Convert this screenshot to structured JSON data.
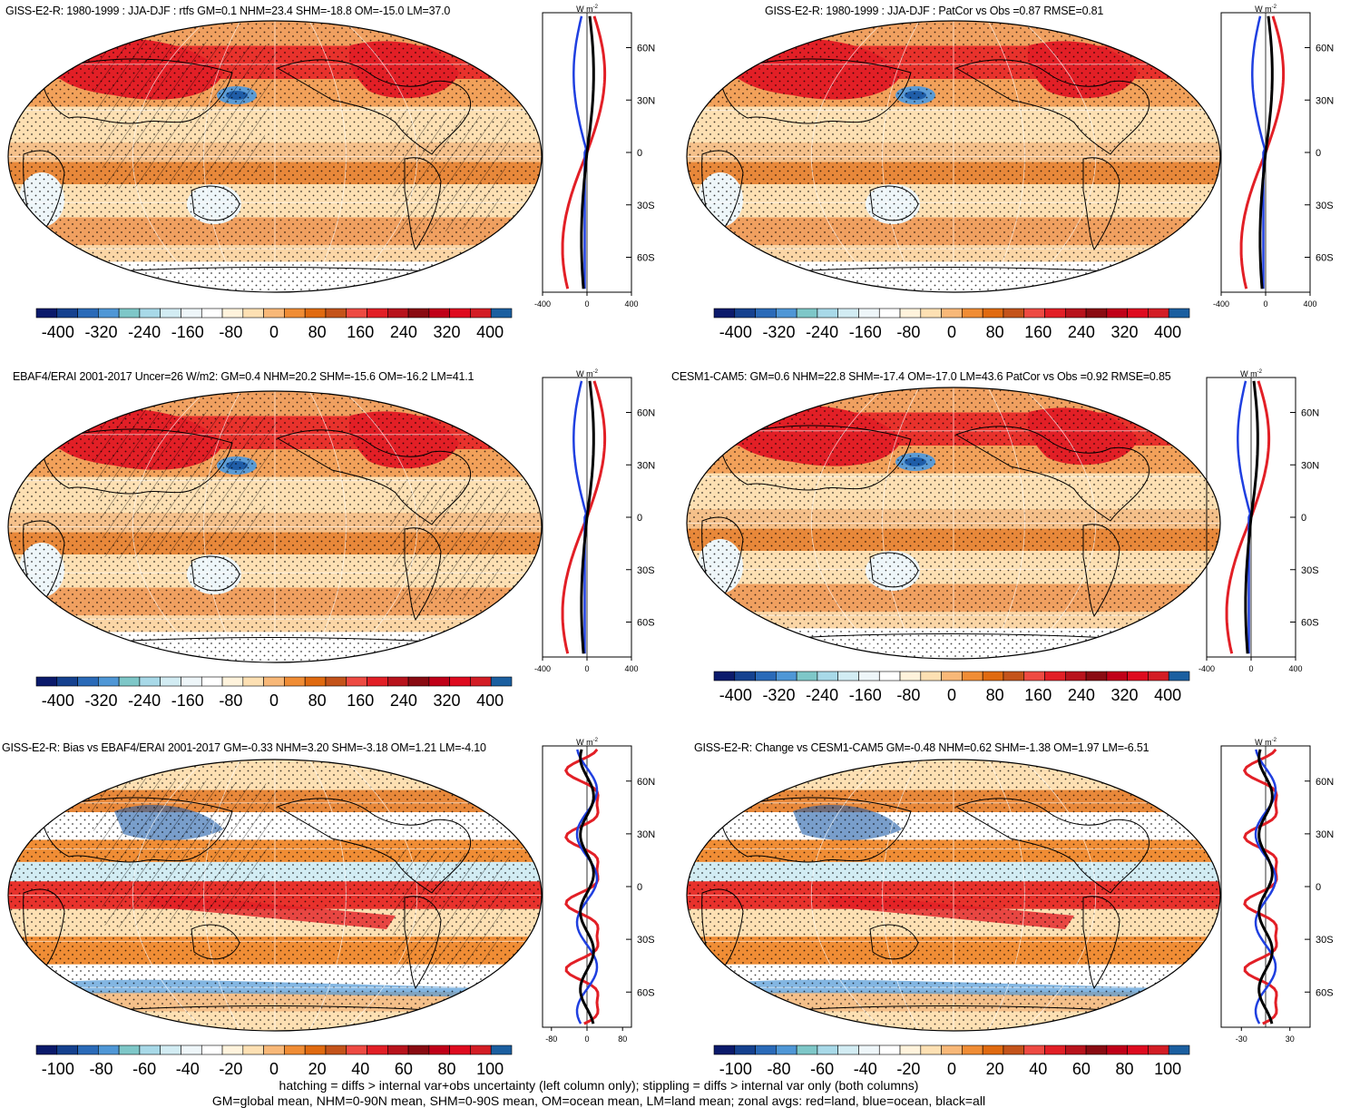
{
  "panels": [
    {
      "title": "GISS-E2-R: 1980-1999 : JJA-DJF : rtfs GM=0.1 NHM=23.4 SHM=-18.8 OM=-15.0 LM=37.0",
      "zonal_unit": "W m",
      "zonal_unit_exp": "-2",
      "zonal_xticks": [
        "-400",
        "0",
        "400"
      ],
      "zonal_xrange": [
        -400,
        400
      ],
      "lat_ticks": [
        "60N",
        "30N",
        "0",
        "30S",
        "60S"
      ],
      "colorbar_labels": [
        "-400",
        "-320",
        "-240",
        "-160",
        "-80",
        "0",
        "80",
        "160",
        "240",
        "320",
        "400"
      ],
      "hatching": true,
      "style": "mean"
    },
    {
      "title": "GISS-E2-R: 1980-1999 : JJA-DJF : PatCor vs Obs =0.87 RMSE=0.81",
      "zonal_unit": "W m",
      "zonal_unit_exp": "-2",
      "zonal_xticks": [
        "-400",
        "0",
        "400"
      ],
      "zonal_xrange": [
        -400,
        400
      ],
      "lat_ticks": [
        "60N",
        "30N",
        "0",
        "30S",
        "60S"
      ],
      "colorbar_labels": [
        "-400",
        "-320",
        "-240",
        "-160",
        "-80",
        "0",
        "80",
        "160",
        "240",
        "320",
        "400"
      ],
      "hatching": false,
      "style": "mean"
    },
    {
      "title": "EBAF4/ERAI 2001-2017 Uncer=26 W/m2: GM=0.4 NHM=20.2 SHM=-15.6 OM=-16.2 LM=41.1",
      "zonal_unit": "W m",
      "zonal_unit_exp": "-2",
      "zonal_xticks": [
        "-400",
        "0",
        "400"
      ],
      "zonal_xrange": [
        -400,
        400
      ],
      "lat_ticks": [
        "60N",
        "30N",
        "0",
        "30S",
        "60S"
      ],
      "colorbar_labels": [
        "-400",
        "-320",
        "-240",
        "-160",
        "-80",
        "0",
        "80",
        "160",
        "240",
        "320",
        "400"
      ],
      "hatching": true,
      "style": "mean"
    },
    {
      "title": "CESM1-CAM5: GM=0.6 NHM=22.8 SHM=-17.4 OM=-17.0 LM=43.6 PatCor vs Obs =0.92 RMSE=0.85",
      "zonal_unit": "W m",
      "zonal_unit_exp": "-2",
      "zonal_xticks": [
        "-400",
        "0",
        "400"
      ],
      "zonal_xrange": [
        -400,
        400
      ],
      "lat_ticks": [
        "60N",
        "30N",
        "0",
        "30S",
        "60S"
      ],
      "colorbar_labels": [
        "-400",
        "-320",
        "-240",
        "-160",
        "-80",
        "0",
        "80",
        "160",
        "240",
        "320",
        "400"
      ],
      "hatching": false,
      "style": "mean"
    },
    {
      "title": "GISS-E2-R: Bias vs EBAF4/ERAI 2001-2017 GM=-0.33 NHM=3.20 SHM=-3.18 OM=1.21 LM=-4.10",
      "zonal_unit": "W m",
      "zonal_unit_exp": "-2",
      "zonal_xticks": [
        "-80",
        "0",
        "80"
      ],
      "zonal_xrange": [
        -100,
        100
      ],
      "lat_ticks": [
        "60N",
        "30N",
        "0",
        "30S",
        "60S"
      ],
      "colorbar_labels": [
        "-100",
        "-80",
        "-60",
        "-40",
        "-20",
        "0",
        "20",
        "40",
        "60",
        "80",
        "100"
      ],
      "hatching": true,
      "style": "diff"
    },
    {
      "title": "GISS-E2-R: Change vs CESM1-CAM5 GM=-0.48 NHM=0.62 SHM=-1.38 OM=1.97 LM=-6.51",
      "zonal_unit": "W m",
      "zonal_unit_exp": "-2",
      "zonal_xticks": [
        "-30",
        "30"
      ],
      "zonal_xrange": [
        -55,
        55
      ],
      "lat_ticks": [
        "60N",
        "30N",
        "0",
        "30S",
        "60S"
      ],
      "colorbar_labels": [
        "-100",
        "-80",
        "-60",
        "-40",
        "-20",
        "0",
        "20",
        "40",
        "60",
        "80",
        "100"
      ],
      "hatching": false,
      "style": "diff"
    }
  ],
  "colorbar_colors": [
    "#0b1a6b",
    "#15418f",
    "#2a6ab8",
    "#4f97d6",
    "#7ec7c8",
    "#a8d9e8",
    "#d2ecf3",
    "#eef6f9",
    "#ffffff",
    "#fff3dc",
    "#fde0b3",
    "#f8b878",
    "#f08d35",
    "#e06a10",
    "#c4531a",
    "#ee4a42",
    "#e21f26",
    "#b8131c",
    "#8a0b12",
    "#c00018",
    "#de0b1f",
    "#d31d25",
    "#1b5fa0"
  ],
  "footer": {
    "line1": "hatching = diffs > internal var+obs uncertainty (left column only); stippling = diffs > internal var only (both columns)",
    "line2": "GM=global mean, NHM=0-90N mean, SHM=0-90S mean, OM=ocean mean, LM=land mean; zonal avgs: red=land, blue=ocean, black=all"
  }
}
